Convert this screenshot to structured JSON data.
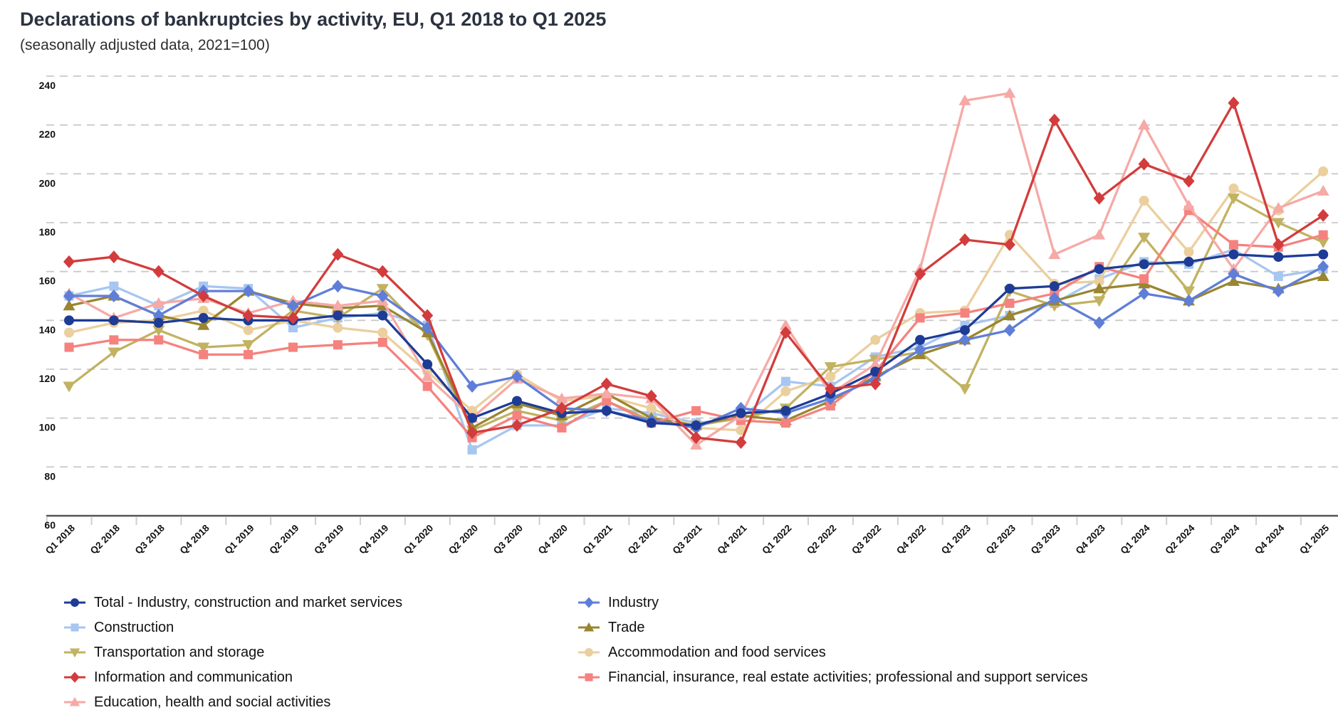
{
  "title": "Declarations of bankruptcies by activity, EU, Q1 2018 to Q1 2025",
  "subtitle": "(seasonally adjusted data, 2021=100)",
  "chart_data": {
    "type": "line",
    "title": "Declarations of bankruptcies by activity, EU, Q1 2018 to Q1 2025",
    "subtitle": "(seasonally adjusted data, 2021=100)",
    "xlabel": "",
    "ylabel": "",
    "ylim": [
      60,
      240
    ],
    "yticks": [
      60,
      80,
      100,
      120,
      140,
      160,
      180,
      200,
      220,
      240
    ],
    "grid": "horizontal dashed",
    "legend_position": "bottom two-column",
    "categories": [
      "Q1 2018",
      "Q2 2018",
      "Q3 2018",
      "Q4 2018",
      "Q1 2019",
      "Q2 2019",
      "Q3 2019",
      "Q4 2019",
      "Q1 2020",
      "Q2 2020",
      "Q3 2020",
      "Q4 2020",
      "Q1 2021",
      "Q2 2021",
      "Q3 2021",
      "Q4 2021",
      "Q1 2022",
      "Q2 2022",
      "Q3 2022",
      "Q4 2022",
      "Q1 2023",
      "Q2 2023",
      "Q3 2023",
      "Q4 2023",
      "Q1 2024",
      "Q2 2024",
      "Q3 2024",
      "Q4 2024",
      "Q1 2025"
    ],
    "series": [
      {
        "name": "Total - Industry, construction and market services",
        "color": "#1E3C96",
        "marker": "circle",
        "values": [
          140,
          140,
          139,
          141,
          140,
          140,
          142,
          142,
          122,
          100,
          107,
          102,
          103,
          98,
          97,
          102,
          103,
          110,
          119,
          132,
          136,
          153,
          154,
          161,
          163,
          164,
          167,
          166,
          167
        ]
      },
      {
        "name": "Industry",
        "color": "#5F7ED8",
        "marker": "diamond",
        "values": [
          150,
          150,
          142,
          152,
          152,
          146,
          154,
          150,
          137,
          113,
          117,
          104,
          103,
          99,
          96,
          104,
          102,
          108,
          116,
          128,
          132,
          136,
          149,
          139,
          151,
          148,
          159,
          152,
          162
        ]
      },
      {
        "name": "Construction",
        "color": "#A7C6F0",
        "marker": "square",
        "values": [
          150,
          154,
          146,
          154,
          153,
          137,
          141,
          143,
          138,
          87,
          97,
          97,
          104,
          102,
          98,
          100,
          115,
          113,
          125,
          129,
          138,
          142,
          147,
          157,
          164,
          163,
          169,
          158,
          161
        ]
      },
      {
        "name": "Trade",
        "color": "#9A8530",
        "marker": "triangle-up",
        "values": [
          146,
          150,
          142,
          138,
          152,
          147,
          145,
          146,
          135,
          96,
          106,
          101,
          110,
          100,
          97,
          101,
          99,
          107,
          117,
          126,
          132,
          142,
          148,
          153,
          155,
          148,
          156,
          153,
          158
        ]
      },
      {
        "name": "Transportation and storage",
        "color": "#C2B261",
        "marker": "triangle-down",
        "values": [
          113,
          127,
          136,
          129,
          130,
          144,
          141,
          153,
          134,
          95,
          103,
          99,
          107,
          99,
          97,
          100,
          104,
          121,
          124,
          127,
          112,
          152,
          146,
          148,
          174,
          152,
          190,
          180,
          172
        ]
      },
      {
        "name": "Accommodation and food services",
        "color": "#EBCF9E",
        "marker": "circle",
        "values": [
          135,
          139,
          140,
          144,
          136,
          140,
          137,
          135,
          119,
          103,
          118,
          107,
          109,
          104,
          96,
          95,
          111,
          117,
          132,
          143,
          144,
          175,
          155,
          156,
          189,
          168,
          194,
          185,
          201
        ]
      },
      {
        "name": "Information and communication",
        "color": "#D33C3C",
        "marker": "diamond",
        "values": [
          164,
          166,
          160,
          150,
          142,
          141,
          167,
          160,
          142,
          94,
          97,
          104,
          114,
          109,
          92,
          90,
          135,
          112,
          114,
          159,
          173,
          171,
          222,
          190,
          204,
          197,
          229,
          171,
          183
        ]
      },
      {
        "name": "Financial, insurance, real estate activities; professional and support services",
        "color": "#F5827E",
        "marker": "square",
        "values": [
          129,
          132,
          132,
          126,
          126,
          129,
          130,
          131,
          113,
          92,
          101,
          96,
          107,
          98,
          103,
          99,
          98,
          105,
          119,
          141,
          143,
          147,
          151,
          162,
          157,
          185,
          171,
          170,
          175
        ]
      },
      {
        "name": "Education, health and social activities",
        "color": "#F6A9A6",
        "marker": "triangle-up",
        "values": [
          151,
          141,
          147,
          149,
          143,
          148,
          146,
          148,
          117,
          100,
          116,
          108,
          110,
          108,
          89,
          101,
          138,
          110,
          122,
          161,
          230,
          233,
          167,
          175,
          220,
          187,
          161,
          186,
          193
        ]
      }
    ],
    "draw_order": [
      2,
      5,
      4,
      3,
      7,
      8,
      1,
      0,
      6
    ],
    "legend_columns": [
      [
        0,
        2,
        4,
        6,
        8
      ],
      [
        1,
        3,
        5,
        7
      ]
    ]
  },
  "style_colors": {
    "gridline": "#cacaca",
    "axis": "#555555",
    "tick": "#cfcfcf",
    "axis_label": "#111111"
  }
}
